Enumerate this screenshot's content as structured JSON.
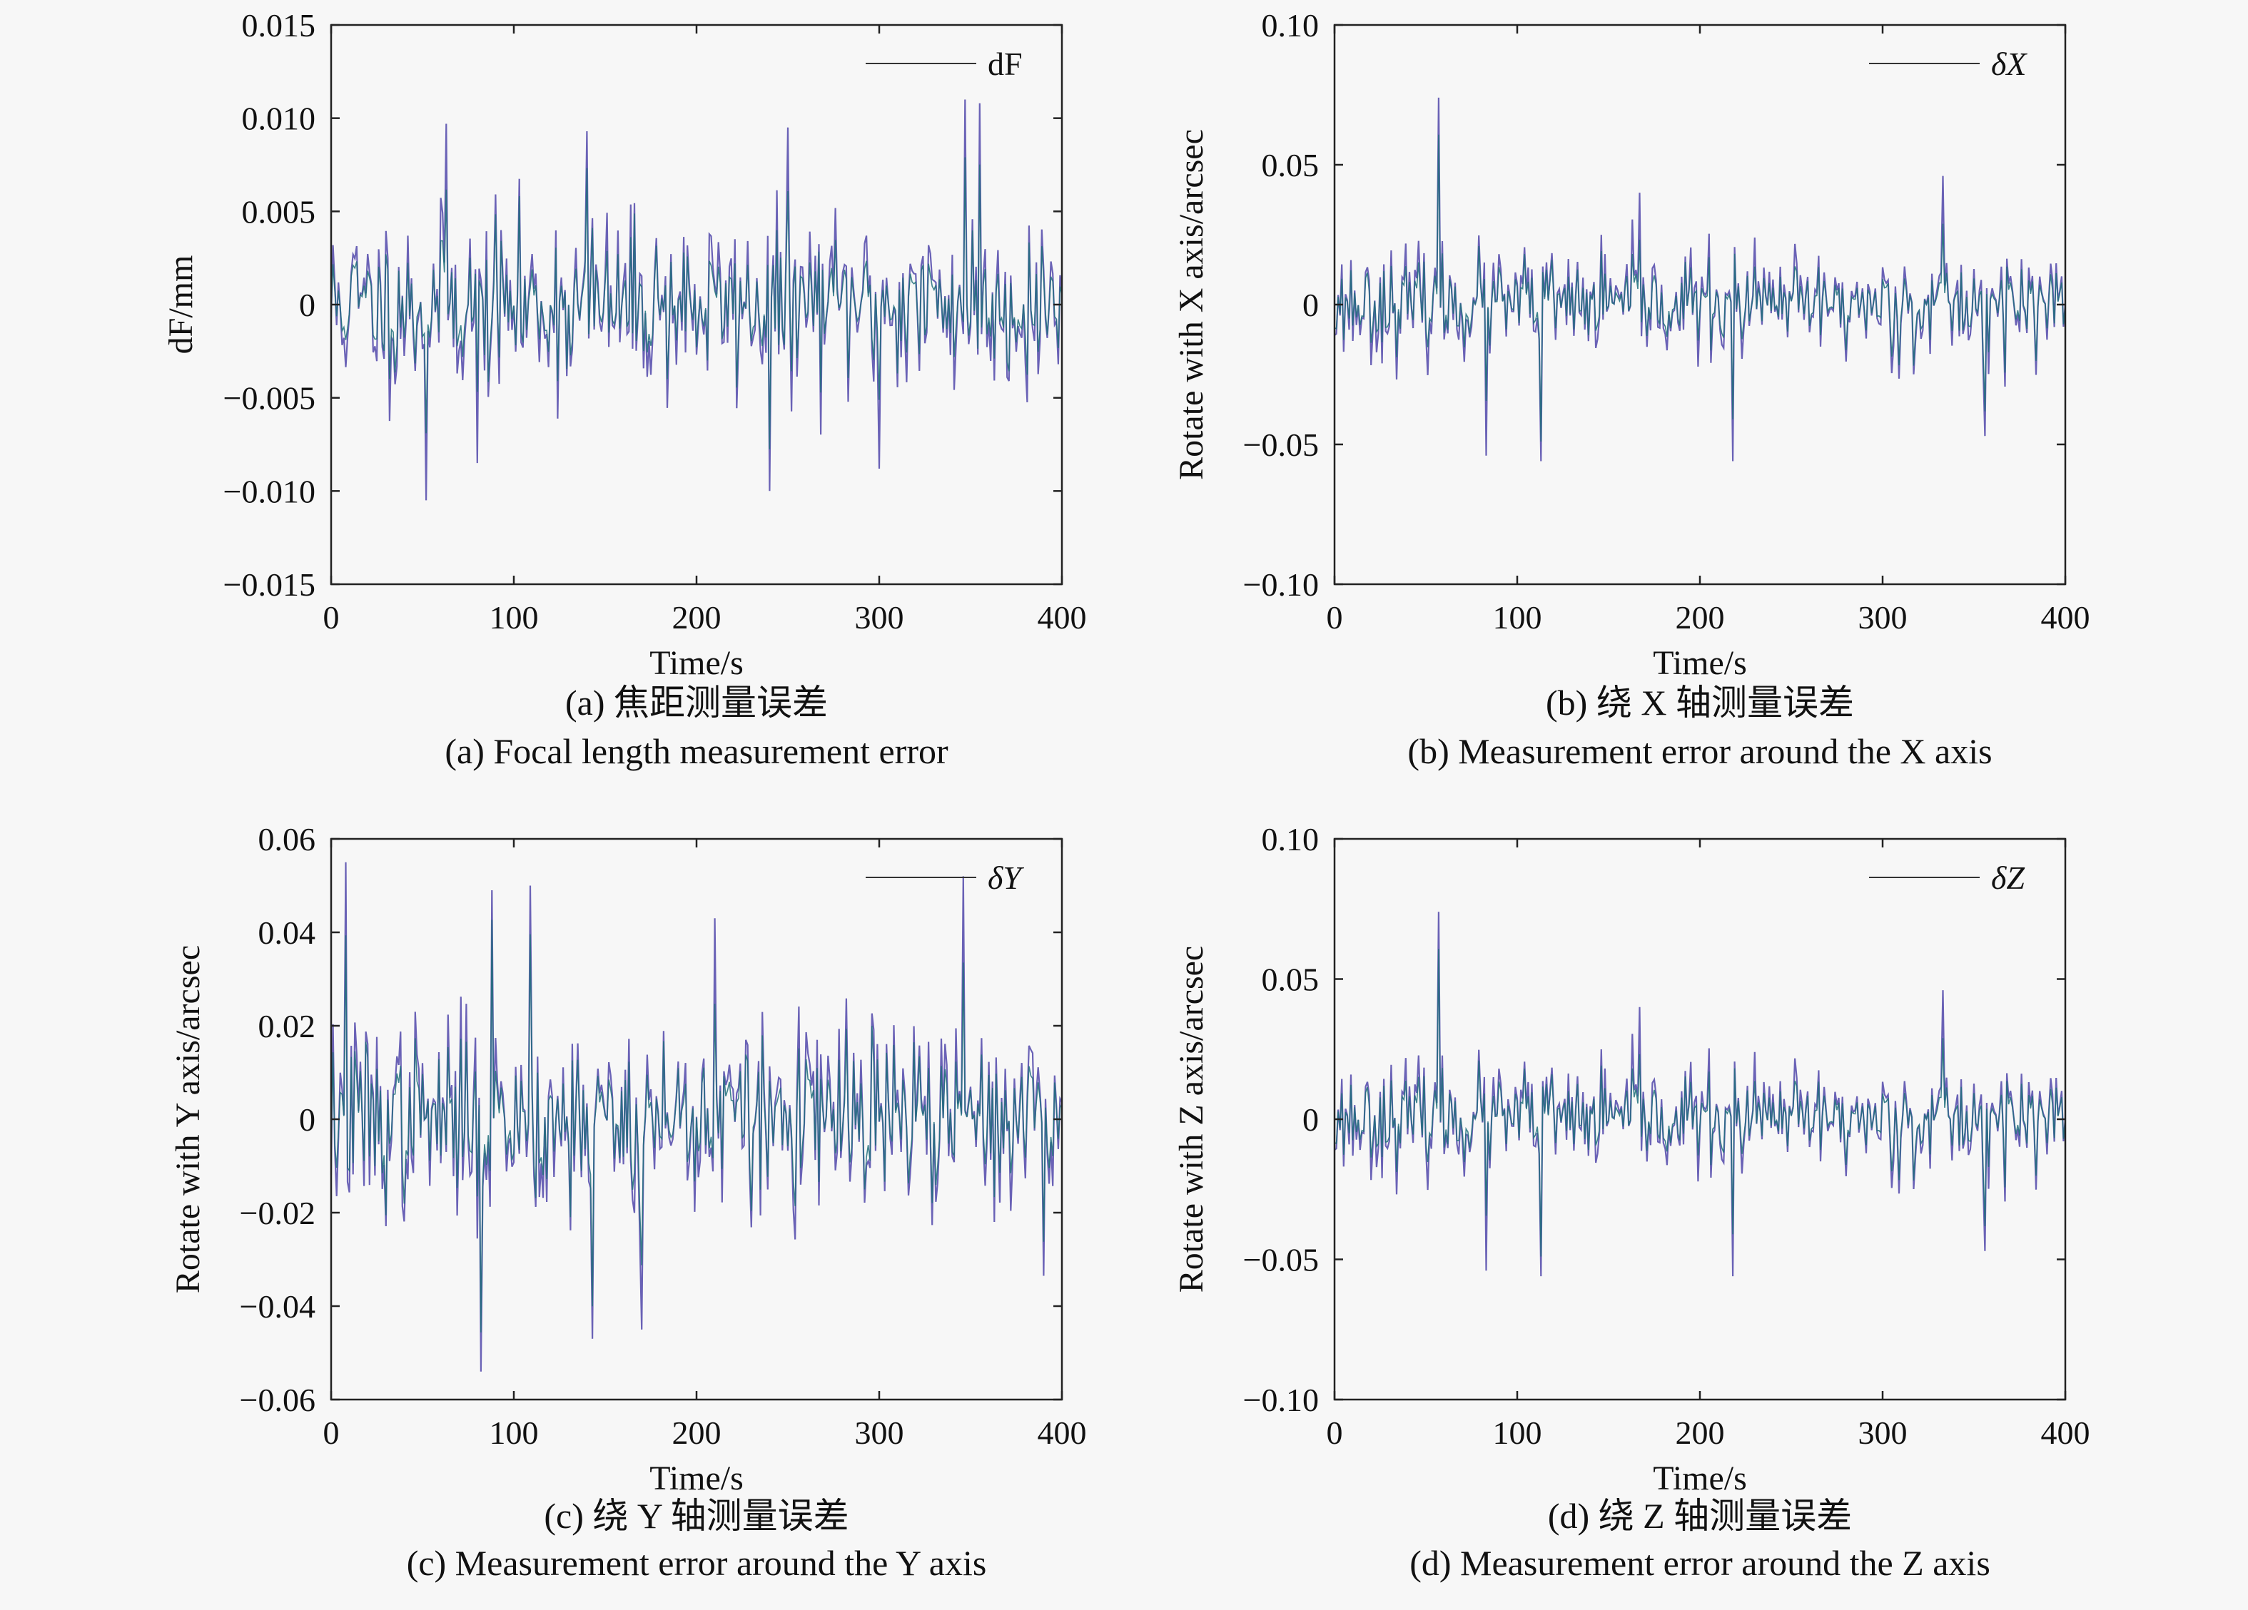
{
  "figure": {
    "background": "#f7f7f7",
    "line_color_primary": "#6a62b6",
    "line_color_secondary": "#1f6f7a",
    "line_color_dark": "#2a2a88"
  },
  "chart_data": [
    {
      "id": "a",
      "type": "line",
      "x_axis_label": "Time/s",
      "y_axis_label": "dF/mm",
      "legend_label": "dF",
      "legend_position": "top-right",
      "caption_cn": "(a) 焦距测量误差",
      "caption_en": "(a) Focal length measurement error",
      "xlim": [
        0,
        400
      ],
      "ylim": [
        -0.015,
        0.015
      ],
      "xticks": [
        0,
        100,
        200,
        300,
        400
      ],
      "xtick_labels": [
        "0",
        "100",
        "200",
        "300",
        "400"
      ],
      "yticks": [
        -0.015,
        -0.01,
        -0.005,
        0,
        0.005,
        0.01,
        0.015
      ],
      "ytick_labels": [
        "−0.015",
        "−0.010",
        "−0.005",
        "0",
        "0.005",
        "0.010",
        "0.015"
      ],
      "noise": {
        "samples": 400,
        "amplitude": 0.0055,
        "seed": 11
      },
      "extremes": [
        [
          52,
          -0.0105
        ],
        [
          250,
          0.0095
        ],
        [
          240,
          -0.01
        ],
        [
          347,
          0.011
        ],
        [
          355,
          0.0108
        ],
        [
          63,
          0.0097
        ],
        [
          140,
          0.0093
        ],
        [
          80,
          -0.0085
        ],
        [
          300,
          -0.0088
        ]
      ]
    },
    {
      "id": "b",
      "type": "line",
      "x_axis_label": "Time/s",
      "y_axis_label": "Rotate with X axis/arcsec",
      "legend_label": "δX",
      "legend_position": "top-right",
      "caption_cn": "(b) 绕 X 轴测量误差",
      "caption_en": "(b) Measurement error around the X axis",
      "xlim": [
        0,
        400
      ],
      "ylim": [
        -0.1,
        0.1
      ],
      "xticks": [
        0,
        100,
        200,
        300,
        400
      ],
      "xtick_labels": [
        "0",
        "100",
        "200",
        "300",
        "400"
      ],
      "yticks": [
        -0.1,
        -0.05,
        0,
        0.05,
        0.1
      ],
      "ytick_labels": [
        "−0.10",
        "−0.05",
        "0",
        "0.05",
        "0.10"
      ],
      "noise": {
        "samples": 400,
        "amplitude": 0.022,
        "seed": 23
      },
      "extremes": [
        [
          57,
          0.074
        ],
        [
          113,
          -0.056
        ],
        [
          218,
          -0.056
        ],
        [
          83,
          -0.054
        ],
        [
          167,
          0.04
        ],
        [
          333,
          0.046
        ],
        [
          356,
          -0.047
        ]
      ]
    },
    {
      "id": "c",
      "type": "line",
      "x_axis_label": "Time/s",
      "y_axis_label": "Rotate with Y axis/arcsec",
      "legend_label": "δY",
      "legend_position": "top-right",
      "caption_cn": "(c) 绕 Y 轴测量误差",
      "caption_en": "(c) Measurement error around the Y axis",
      "xlim": [
        0,
        400
      ],
      "ylim": [
        -0.06,
        0.06
      ],
      "xticks": [
        0,
        100,
        200,
        300,
        400
      ],
      "xtick_labels": [
        "0",
        "100",
        "200",
        "300",
        "400"
      ],
      "yticks": [
        -0.06,
        -0.04,
        -0.02,
        0,
        0.02,
        0.04,
        0.06
      ],
      "ytick_labels": [
        "−0.06",
        "−0.04",
        "−0.02",
        "0",
        "0.02",
        "0.04",
        "0.06"
      ],
      "noise": {
        "samples": 400,
        "amplitude": 0.024,
        "seed": 37
      },
      "extremes": [
        [
          8,
          0.055
        ],
        [
          82,
          -0.054
        ],
        [
          88,
          0.049
        ],
        [
          109,
          0.05
        ],
        [
          143,
          -0.047
        ],
        [
          346,
          0.052
        ],
        [
          170,
          -0.045
        ],
        [
          210,
          0.043
        ]
      ]
    },
    {
      "id": "d",
      "type": "line",
      "x_axis_label": "Time/s",
      "y_axis_label": "Rotate with Z axis/arcsec",
      "legend_label": "δZ",
      "legend_position": "top-right",
      "caption_cn": "(d) 绕 Z 轴测量误差",
      "caption_en": "(d) Measurement error around the Z axis",
      "xlim": [
        0,
        400
      ],
      "ylim": [
        -0.1,
        0.1
      ],
      "xticks": [
        0,
        100,
        200,
        300,
        400
      ],
      "xtick_labels": [
        "0",
        "100",
        "200",
        "300",
        "400"
      ],
      "yticks": [
        -0.1,
        -0.05,
        0,
        0.05,
        0.1
      ],
      "ytick_labels": [
        "−0.10",
        "−0.05",
        "0",
        "0.05",
        "0.10"
      ],
      "noise": {
        "samples": 400,
        "amplitude": 0.022,
        "seed": 23
      },
      "extremes": [
        [
          57,
          0.074
        ],
        [
          113,
          -0.056
        ],
        [
          218,
          -0.056
        ],
        [
          83,
          -0.054
        ],
        [
          167,
          0.04
        ],
        [
          333,
          0.046
        ],
        [
          356,
          -0.047
        ]
      ]
    }
  ]
}
